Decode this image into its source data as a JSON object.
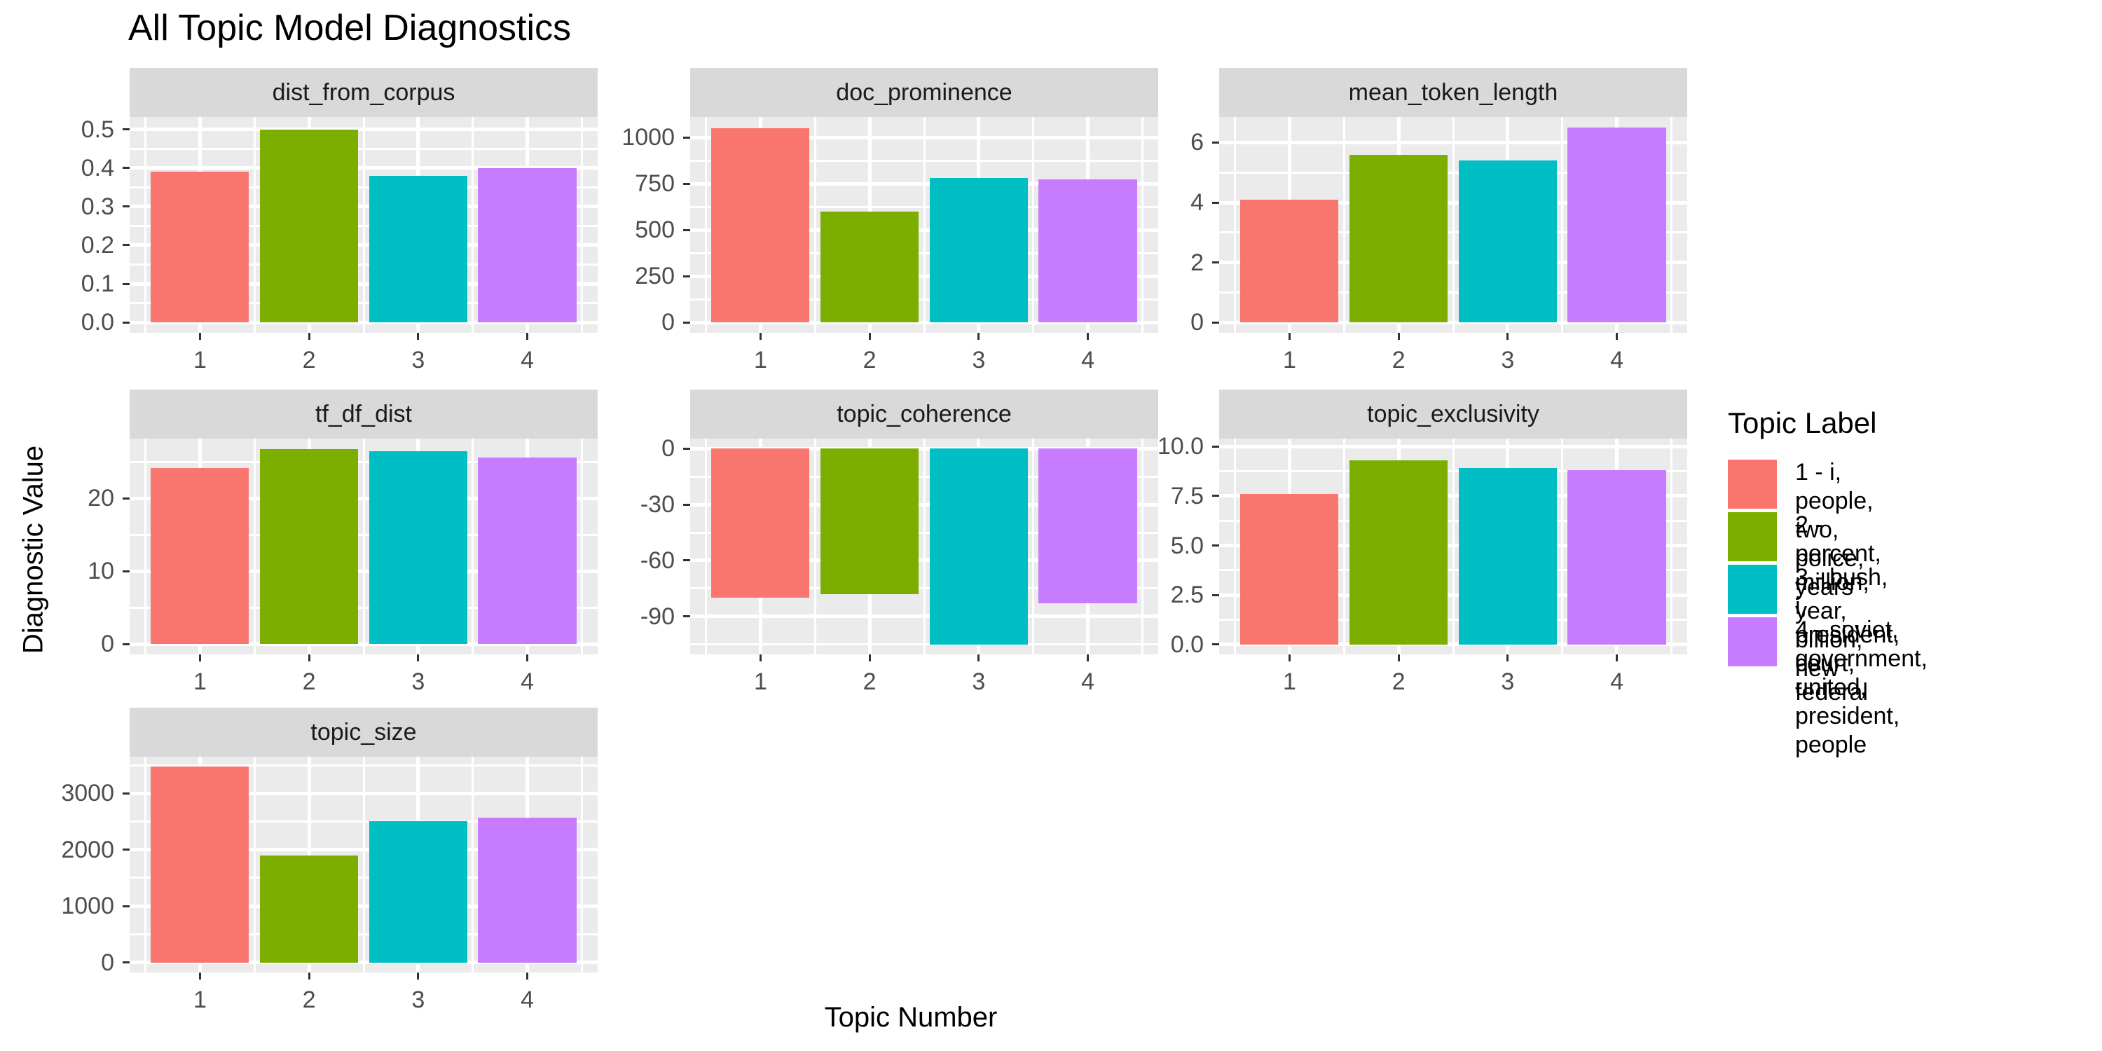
{
  "chart_data": {
    "type": "bar",
    "faceted": true,
    "title": "All Topic Model Diagnostics",
    "xlabel": "Topic Number",
    "ylabel": "Diagnostic Value",
    "categories": [
      "1",
      "2",
      "3",
      "4"
    ],
    "bar_colors": [
      "#F8766D",
      "#7CAE00",
      "#00BFC4",
      "#C77CFF"
    ],
    "grid": true,
    "legend_position": "right",
    "facets": [
      {
        "title": "dist_from_corpus",
        "values": [
          0.39,
          0.5,
          0.38,
          0.4
        ],
        "yticks": [
          0,
          0.1,
          0.2,
          0.3,
          0.4,
          0.5
        ],
        "ytick_labels": [
          "0.0",
          "0.1",
          "0.2",
          "0.3",
          "0.4",
          "0.5"
        ],
        "ylim": [
          -0.027,
          0.532
        ]
      },
      {
        "title": "doc_prominence",
        "values": [
          1050,
          600,
          780,
          775
        ],
        "yticks": [
          0,
          250,
          500,
          750,
          1000
        ],
        "ytick_labels": [
          "0",
          "250",
          "500",
          "750",
          "1000"
        ],
        "ylim": [
          -55,
          1110
        ]
      },
      {
        "title": "mean_token_length",
        "values": [
          4.1,
          5.6,
          5.4,
          6.5
        ],
        "yticks": [
          0,
          2,
          4,
          6
        ],
        "ytick_labels": [
          "0",
          "2",
          "4",
          "6"
        ],
        "ylim": [
          -0.34,
          6.85
        ]
      },
      {
        "title": "tf_df_dist",
        "values": [
          24.2,
          26.8,
          26.5,
          25.6
        ],
        "yticks": [
          0,
          10,
          20
        ],
        "ytick_labels": [
          "0",
          "10",
          "20"
        ],
        "ylim": [
          -1.4,
          28.2
        ]
      },
      {
        "title": "topic_coherence",
        "values": [
          -80,
          -78,
          -105,
          -83
        ],
        "yticks": [
          0,
          -30,
          -60,
          -90
        ],
        "ytick_labels": [
          "0",
          "-30",
          "-60",
          "-90"
        ],
        "ylim": [
          -110.3,
          5.3
        ]
      },
      {
        "title": "topic_exclusivity",
        "values": [
          7.6,
          9.3,
          8.9,
          8.8
        ],
        "yticks": [
          0,
          2.5,
          5,
          7.5,
          10
        ],
        "ytick_labels": [
          "0.0",
          "2.5",
          "5.0",
          "7.5",
          "10.0"
        ],
        "ylim": [
          -0.5,
          10.4
        ]
      },
      {
        "title": "topic_size",
        "values": [
          3470,
          1900,
          2500,
          2570
        ],
        "yticks": [
          0,
          1000,
          2000,
          3000
        ],
        "ytick_labels": [
          "0",
          "1000",
          "2000",
          "3000"
        ],
        "ylim": [
          -180,
          3650
        ]
      }
    ],
    "legend": {
      "title": "Topic Label",
      "entries": [
        {
          "color": "#F8766D",
          "lines": [
            "1 - i, people, two,",
            "police, years"
          ]
        },
        {
          "color": "#7CAE00",
          "lines": [
            "2 - percent, million,",
            "year, billion, new"
          ]
        },
        {
          "color": "#00BFC4",
          "lines": [
            "3 - bush, i, president,",
            "court, federal"
          ]
        },
        {
          "color": "#C77CFF",
          "lines": [
            "4 - soviet, government,",
            "united, president, people"
          ]
        }
      ]
    },
    "theme": {
      "panel_bg": "#EBEBEB",
      "strip_bg": "#D9D9D9",
      "grid_color": "#FFFFFF",
      "tick_text_color": "#4D4D4D",
      "title_color": "#000000"
    }
  }
}
